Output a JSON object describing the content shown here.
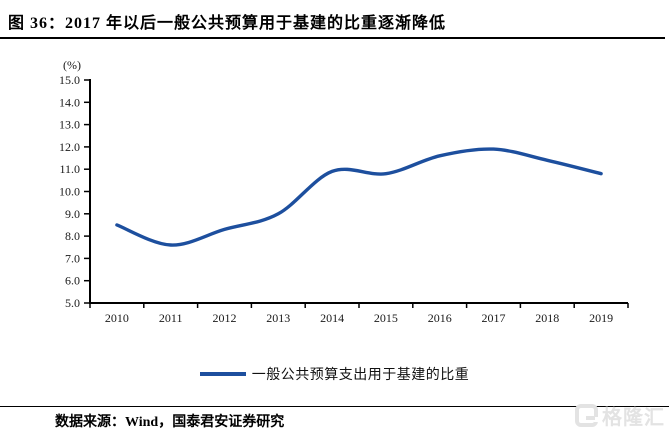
{
  "page": {
    "title": "图 36：2017 年以后一般公共预算用于基建的比重逐渐降低",
    "source": "数据来源：Wind，国泰君安证券研究",
    "watermark": "格隆汇"
  },
  "colors": {
    "line": "#1d4f9e",
    "axis": "#000000",
    "tick_label": "#1a1a1a",
    "watermark": "#e3e3e3"
  },
  "chart_data": {
    "type": "line",
    "title": "",
    "categories": [
      "2010",
      "2011",
      "2012",
      "2013",
      "2014",
      "2015",
      "2016",
      "2017",
      "2018",
      "2019"
    ],
    "series": [
      {
        "name": "一般公共预算支出用于基建的比重",
        "color": "#1d4f9e",
        "values": [
          8.5,
          7.6,
          8.3,
          9.0,
          10.9,
          10.8,
          11.6,
          11.9,
          11.4,
          10.8
        ]
      }
    ],
    "xlabel": "",
    "ylabel": "(%)",
    "ylim": [
      5.0,
      15.0
    ],
    "ytick_step": 1.0,
    "ytick_labels": [
      "5.0",
      "6.0",
      "7.0",
      "8.0",
      "9.0",
      "10.0",
      "11.0",
      "12.0",
      "13.0",
      "14.0",
      "15.0"
    ],
    "grid": false,
    "smooth": true,
    "legend_position": "bottom"
  }
}
